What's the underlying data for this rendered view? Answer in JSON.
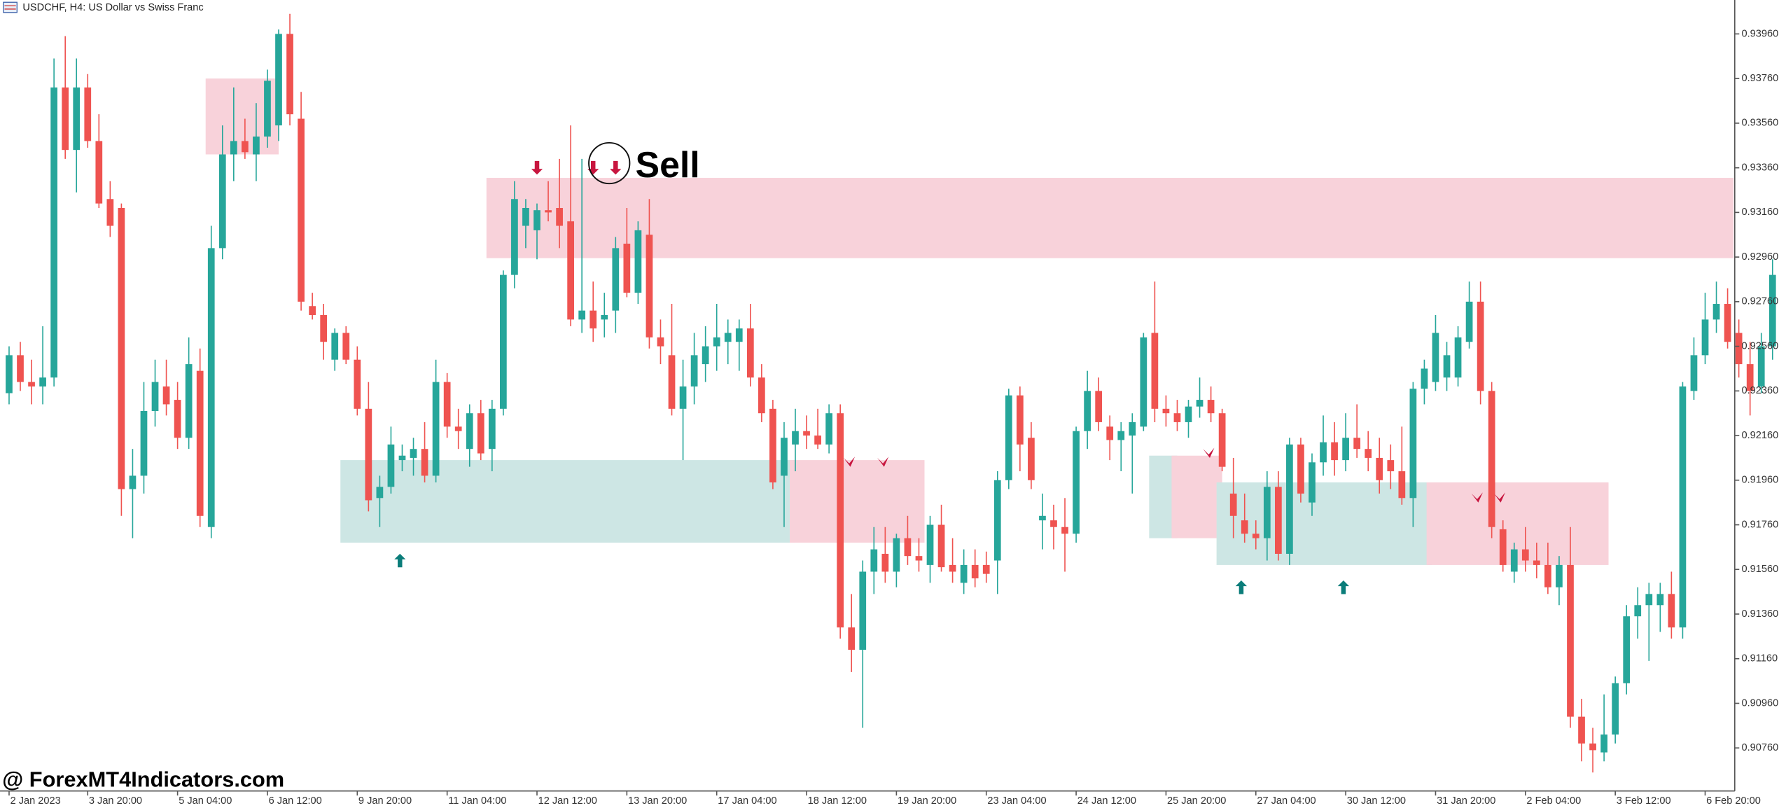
{
  "chart_data": {
    "type": "candlestick",
    "title": "USDCHF, H4:  US Dollar vs Swiss Franc",
    "watermark": "@ ForexMT4Indicators.com",
    "annotation": "Sell",
    "up_color": "#26a69a",
    "down_color": "#ef5350",
    "ylim": [
      0.90567,
      0.94112
    ],
    "yticks": [
      {
        "value": 0.9396,
        "label": "0.93960"
      },
      {
        "value": 0.9376,
        "label": "0.93760"
      },
      {
        "value": 0.9356,
        "label": "0.93560"
      },
      {
        "value": 0.9336,
        "label": "0.93360"
      },
      {
        "value": 0.9316,
        "label": "0.93160"
      },
      {
        "value": 0.9296,
        "label": "0.92960"
      },
      {
        "value": 0.9276,
        "label": "0.92760"
      },
      {
        "value": 0.9256,
        "label": "0.92560"
      },
      {
        "value": 0.9236,
        "label": "0.92360"
      },
      {
        "value": 0.9216,
        "label": "0.92160"
      },
      {
        "value": 0.9196,
        "label": "0.91960"
      },
      {
        "value": 0.9176,
        "label": "0.91760"
      },
      {
        "value": 0.9156,
        "label": "0.91560"
      },
      {
        "value": 0.9136,
        "label": "0.91360"
      },
      {
        "value": 0.9116,
        "label": "0.91160"
      },
      {
        "value": 0.9096,
        "label": "0.90960"
      },
      {
        "value": 0.9076,
        "label": "0.90760"
      }
    ],
    "xticks": [
      {
        "value": 0,
        "label": "2 Jan 2023"
      },
      {
        "value": 7,
        "label": "3 Jan 20:00"
      },
      {
        "value": 15,
        "label": "5 Jan 04:00"
      },
      {
        "value": 23,
        "label": "6 Jan 12:00"
      },
      {
        "value": 31,
        "label": "9 Jan 20:00"
      },
      {
        "value": 39,
        "label": "11 Jan 04:00"
      },
      {
        "value": 47,
        "label": "12 Jan 12:00"
      },
      {
        "value": 55,
        "label": "13 Jan 20:00"
      },
      {
        "value": 63,
        "label": "17 Jan 04:00"
      },
      {
        "value": 71,
        "label": "18 Jan 12:00"
      },
      {
        "value": 79,
        "label": "19 Jan 20:00"
      },
      {
        "value": 87,
        "label": "23 Jan 04:00"
      },
      {
        "value": 95,
        "label": "24 Jan 12:00"
      },
      {
        "value": 103,
        "label": "25 Jan 20:00"
      },
      {
        "value": 111,
        "label": "27 Jan 04:00"
      },
      {
        "value": 119,
        "label": "30 Jan 12:00"
      },
      {
        "value": 127,
        "label": "31 Jan 20:00"
      },
      {
        "value": 135,
        "label": "2 Feb 04:00"
      },
      {
        "value": 143,
        "label": "3 Feb 12:00"
      },
      {
        "value": 151,
        "label": "6 Feb 20:00"
      }
    ],
    "ohlc": [
      [
        0.9235,
        0.9256,
        0.923,
        0.9252
      ],
      [
        0.9252,
        0.9258,
        0.9236,
        0.924
      ],
      [
        0.924,
        0.925,
        0.923,
        0.9238
      ],
      [
        0.9238,
        0.9265,
        0.923,
        0.9242
      ],
      [
        0.9242,
        0.9385,
        0.9238,
        0.9372
      ],
      [
        0.9372,
        0.9395,
        0.934,
        0.9344
      ],
      [
        0.9344,
        0.9385,
        0.9325,
        0.9372
      ],
      [
        0.9372,
        0.9378,
        0.9345,
        0.9348
      ],
      [
        0.9348,
        0.936,
        0.9318,
        0.932
      ],
      [
        0.9322,
        0.933,
        0.9305,
        0.931
      ],
      [
        0.9318,
        0.932,
        0.918,
        0.9192
      ],
      [
        0.9192,
        0.921,
        0.917,
        0.9198
      ],
      [
        0.9198,
        0.924,
        0.919,
        0.9227
      ],
      [
        0.9227,
        0.925,
        0.922,
        0.924
      ],
      [
        0.9238,
        0.925,
        0.9225,
        0.923
      ],
      [
        0.9232,
        0.924,
        0.921,
        0.9215
      ],
      [
        0.9215,
        0.926,
        0.921,
        0.9248
      ],
      [
        0.9245,
        0.9255,
        0.9175,
        0.918
      ],
      [
        0.9175,
        0.931,
        0.917,
        0.93
      ],
      [
        0.93,
        0.9355,
        0.9295,
        0.9342
      ],
      [
        0.9342,
        0.9372,
        0.933,
        0.9348
      ],
      [
        0.9348,
        0.9358,
        0.934,
        0.9343
      ],
      [
        0.9342,
        0.9365,
        0.933,
        0.935
      ],
      [
        0.935,
        0.938,
        0.9345,
        0.9375
      ],
      [
        0.9355,
        0.9398,
        0.9348,
        0.9396
      ],
      [
        0.9396,
        0.9405,
        0.9355,
        0.936
      ],
      [
        0.9358,
        0.937,
        0.9272,
        0.9276
      ],
      [
        0.9274,
        0.928,
        0.9268,
        0.927
      ],
      [
        0.927,
        0.9275,
        0.925,
        0.9258
      ],
      [
        0.925,
        0.9264,
        0.9245,
        0.9262
      ],
      [
        0.9262,
        0.9265,
        0.9248,
        0.925
      ],
      [
        0.925,
        0.9256,
        0.9225,
        0.9228
      ],
      [
        0.9228,
        0.924,
        0.9182,
        0.9187
      ],
      [
        0.9188,
        0.9198,
        0.9175,
        0.9193
      ],
      [
        0.9193,
        0.922,
        0.919,
        0.9212
      ],
      [
        0.9205,
        0.9212,
        0.92,
        0.9207
      ],
      [
        0.9206,
        0.9215,
        0.9198,
        0.921
      ],
      [
        0.921,
        0.9222,
        0.9195,
        0.9198
      ],
      [
        0.9198,
        0.925,
        0.9195,
        0.924
      ],
      [
        0.924,
        0.9244,
        0.9215,
        0.922
      ],
      [
        0.922,
        0.9228,
        0.921,
        0.9218
      ],
      [
        0.921,
        0.923,
        0.9202,
        0.9226
      ],
      [
        0.9226,
        0.9232,
        0.9205,
        0.9208
      ],
      [
        0.921,
        0.9232,
        0.92,
        0.9228
      ],
      [
        0.9228,
        0.929,
        0.9225,
        0.9288
      ],
      [
        0.9288,
        0.933,
        0.9282,
        0.9322
      ],
      [
        0.931,
        0.9322,
        0.93,
        0.9318
      ],
      [
        0.9308,
        0.932,
        0.9295,
        0.9317
      ],
      [
        0.9317,
        0.933,
        0.9312,
        0.9316
      ],
      [
        0.9318,
        0.934,
        0.93,
        0.931
      ],
      [
        0.9312,
        0.9355,
        0.9265,
        0.9268
      ],
      [
        0.9268,
        0.934,
        0.9262,
        0.9272
      ],
      [
        0.9272,
        0.9285,
        0.9258,
        0.9264
      ],
      [
        0.9268,
        0.928,
        0.926,
        0.927
      ],
      [
        0.9272,
        0.9305,
        0.9262,
        0.93
      ],
      [
        0.9302,
        0.9318,
        0.9278,
        0.928
      ],
      [
        0.928,
        0.9312,
        0.9275,
        0.9308
      ],
      [
        0.9306,
        0.9322,
        0.9255,
        0.926
      ],
      [
        0.926,
        0.9268,
        0.9248,
        0.9256
      ],
      [
        0.9252,
        0.9275,
        0.9225,
        0.9228
      ],
      [
        0.9228,
        0.925,
        0.9205,
        0.9238
      ],
      [
        0.9238,
        0.9262,
        0.923,
        0.9252
      ],
      [
        0.9248,
        0.9265,
        0.924,
        0.9256
      ],
      [
        0.9256,
        0.9275,
        0.9245,
        0.926
      ],
      [
        0.9258,
        0.9268,
        0.9248,
        0.9262
      ],
      [
        0.9258,
        0.9268,
        0.9245,
        0.9264
      ],
      [
        0.9264,
        0.9275,
        0.9238,
        0.9242
      ],
      [
        0.9242,
        0.9248,
        0.9222,
        0.9226
      ],
      [
        0.9228,
        0.9232,
        0.9192,
        0.9195
      ],
      [
        0.9198,
        0.9222,
        0.9175,
        0.9215
      ],
      [
        0.9212,
        0.9228,
        0.92,
        0.9218
      ],
      [
        0.9218,
        0.9225,
        0.921,
        0.9216
      ],
      [
        0.9216,
        0.9228,
        0.921,
        0.9212
      ],
      [
        0.9212,
        0.923,
        0.9208,
        0.9226
      ],
      [
        0.9226,
        0.923,
        0.9125,
        0.913
      ],
      [
        0.913,
        0.9145,
        0.911,
        0.912
      ],
      [
        0.912,
        0.916,
        0.9085,
        0.9155
      ],
      [
        0.9155,
        0.9175,
        0.9145,
        0.9165
      ],
      [
        0.9163,
        0.9175,
        0.915,
        0.9155
      ],
      [
        0.9155,
        0.9172,
        0.9148,
        0.917
      ],
      [
        0.917,
        0.918,
        0.9158,
        0.9162
      ],
      [
        0.9162,
        0.917,
        0.9155,
        0.916
      ],
      [
        0.9158,
        0.918,
        0.915,
        0.9176
      ],
      [
        0.9176,
        0.9185,
        0.9155,
        0.9157
      ],
      [
        0.9158,
        0.917,
        0.915,
        0.9155
      ],
      [
        0.915,
        0.9165,
        0.9145,
        0.9158
      ],
      [
        0.9158,
        0.9165,
        0.9148,
        0.9152
      ],
      [
        0.9158,
        0.9164,
        0.915,
        0.9154
      ],
      [
        0.916,
        0.92,
        0.9145,
        0.9196
      ],
      [
        0.9196,
        0.9237,
        0.9192,
        0.9234
      ],
      [
        0.9234,
        0.9238,
        0.92,
        0.9212
      ],
      [
        0.9215,
        0.9222,
        0.9192,
        0.9196
      ],
      [
        0.9178,
        0.919,
        0.9165,
        0.918
      ],
      [
        0.9178,
        0.9185,
        0.9165,
        0.9175
      ],
      [
        0.9175,
        0.9188,
        0.9155,
        0.9172
      ],
      [
        0.9172,
        0.922,
        0.9168,
        0.9218
      ],
      [
        0.9218,
        0.9245,
        0.921,
        0.9236
      ],
      [
        0.9236,
        0.9242,
        0.9218,
        0.9222
      ],
      [
        0.922,
        0.9225,
        0.9205,
        0.9214
      ],
      [
        0.9214,
        0.9222,
        0.92,
        0.9218
      ],
      [
        0.9216,
        0.9226,
        0.919,
        0.9222
      ],
      [
        0.922,
        0.9262,
        0.9218,
        0.926
      ],
      [
        0.9262,
        0.9285,
        0.9222,
        0.9228
      ],
      [
        0.9228,
        0.9234,
        0.922,
        0.9226
      ],
      [
        0.9226,
        0.9232,
        0.9218,
        0.9222
      ],
      [
        0.9222,
        0.9232,
        0.9215,
        0.9229
      ],
      [
        0.9229,
        0.9242,
        0.9224,
        0.9232
      ],
      [
        0.9232,
        0.9238,
        0.9222,
        0.9226
      ],
      [
        0.9226,
        0.9228,
        0.92,
        0.9202
      ],
      [
        0.919,
        0.9206,
        0.917,
        0.918
      ],
      [
        0.9178,
        0.919,
        0.9168,
        0.9172
      ],
      [
        0.9172,
        0.9178,
        0.9165,
        0.917
      ],
      [
        0.917,
        0.92,
        0.916,
        0.9193
      ],
      [
        0.9193,
        0.92,
        0.916,
        0.9163
      ],
      [
        0.9163,
        0.9215,
        0.9158,
        0.9212
      ],
      [
        0.9212,
        0.9215,
        0.9186,
        0.919
      ],
      [
        0.9186,
        0.9208,
        0.918,
        0.9204
      ],
      [
        0.9204,
        0.9225,
        0.9198,
        0.9213
      ],
      [
        0.9213,
        0.9222,
        0.9198,
        0.9205
      ],
      [
        0.9205,
        0.9226,
        0.92,
        0.9215
      ],
      [
        0.9215,
        0.923,
        0.9206,
        0.921
      ],
      [
        0.921,
        0.9218,
        0.92,
        0.9206
      ],
      [
        0.9206,
        0.9215,
        0.919,
        0.9196
      ],
      [
        0.9205,
        0.9212,
        0.9192,
        0.92
      ],
      [
        0.92,
        0.922,
        0.9185,
        0.9188
      ],
      [
        0.9188,
        0.924,
        0.9175,
        0.9237
      ],
      [
        0.9237,
        0.925,
        0.923,
        0.9246
      ],
      [
        0.924,
        0.927,
        0.9236,
        0.9262
      ],
      [
        0.9242,
        0.9258,
        0.9236,
        0.9252
      ],
      [
        0.9242,
        0.9265,
        0.9238,
        0.926
      ],
      [
        0.9258,
        0.9285,
        0.9255,
        0.9276
      ],
      [
        0.9276,
        0.9285,
        0.923,
        0.9236
      ],
      [
        0.9236,
        0.924,
        0.917,
        0.9175
      ],
      [
        0.9174,
        0.9178,
        0.9155,
        0.9158
      ],
      [
        0.9155,
        0.9168,
        0.915,
        0.9165
      ],
      [
        0.9165,
        0.9175,
        0.9155,
        0.916
      ],
      [
        0.916,
        0.9168,
        0.9152,
        0.9158
      ],
      [
        0.9158,
        0.9168,
        0.9145,
        0.9148
      ],
      [
        0.9148,
        0.9162,
        0.914,
        0.9158
      ],
      [
        0.9158,
        0.9175,
        0.9085,
        0.909
      ],
      [
        0.909,
        0.9098,
        0.907,
        0.9078
      ],
      [
        0.9078,
        0.9085,
        0.9065,
        0.9075
      ],
      [
        0.9074,
        0.91,
        0.907,
        0.9082
      ],
      [
        0.9082,
        0.9108,
        0.9078,
        0.9105
      ],
      [
        0.9105,
        0.914,
        0.91,
        0.9135
      ],
      [
        0.9135,
        0.9148,
        0.9125,
        0.914
      ],
      [
        0.914,
        0.915,
        0.9115,
        0.9145
      ],
      [
        0.914,
        0.915,
        0.9128,
        0.9145
      ],
      [
        0.9145,
        0.9155,
        0.9125,
        0.913
      ],
      [
        0.913,
        0.924,
        0.9125,
        0.9238
      ],
      [
        0.9236,
        0.926,
        0.9232,
        0.9252
      ],
      [
        0.9252,
        0.928,
        0.9248,
        0.9268
      ],
      [
        0.9268,
        0.9285,
        0.9262,
        0.9275
      ],
      [
        0.9275,
        0.9282,
        0.9255,
        0.9258
      ],
      [
        0.9262,
        0.9268,
        0.9242,
        0.9248
      ],
      [
        0.9248,
        0.9258,
        0.9225,
        0.9236
      ],
      [
        0.9238,
        0.9262,
        0.9235,
        0.9256
      ],
      [
        0.9256,
        0.9295,
        0.925,
        0.9288
      ],
      [
        0.9288,
        0.9292,
        0.9268,
        0.9284
      ],
      [
        0.9284,
        0.929,
        0.926,
        0.9262
      ],
      [
        0.926,
        0.9264,
        0.9255,
        0.9261
      ]
    ],
    "zones": [
      {
        "start": 18,
        "end": 24,
        "low": 0.9342,
        "high": 0.9376,
        "color": "#f8d2da"
      },
      {
        "start": 43,
        "end": 154,
        "low": 0.92955,
        "high": 0.93315,
        "color": "#f8d2da"
      },
      {
        "start": 30,
        "end": 70,
        "low": 0.9168,
        "high": 0.9205,
        "color": "#cde6e4"
      },
      {
        "start": 70,
        "end": 81.5,
        "low": 0.9168,
        "high": 0.9205,
        "color": "#f8d2da"
      },
      {
        "start": 102,
        "end": 104,
        "low": 0.917,
        "high": 0.9207,
        "color": "#cde6e4"
      },
      {
        "start": 104,
        "end": 108,
        "low": 0.917,
        "high": 0.9207,
        "color": "#f8d2da"
      },
      {
        "start": 108,
        "end": 126.7,
        "low": 0.9158,
        "high": 0.9195,
        "color": "#cde6e4"
      },
      {
        "start": 126.7,
        "end": 142.4,
        "low": 0.9158,
        "high": 0.9195,
        "color": "#f8d2da"
      }
    ],
    "buy_arrows": {
      "color": "#0b7d7a",
      "points": [
        {
          "index": 34.8,
          "price": 0.916
        },
        {
          "index": 109.7,
          "price": 0.9148
        },
        {
          "index": 118.8,
          "price": 0.9148
        }
      ]
    },
    "sell_arrows": {
      "color": "#c8163f",
      "points": [
        {
          "index": 47,
          "price": 0.9336
        },
        {
          "index": 52,
          "price": 0.9336
        },
        {
          "index": 54,
          "price": 0.9336
        }
      ]
    },
    "sell_marks": {
      "color": "#c8163f",
      "points": [
        {
          "index": 74.8,
          "price": 0.9204
        },
        {
          "index": 77.8,
          "price": 0.9204
        },
        {
          "index": 106.8,
          "price": 0.9208
        },
        {
          "index": 130.7,
          "price": 0.9188
        },
        {
          "index": 132.7,
          "price": 0.9188
        }
      ]
    }
  }
}
